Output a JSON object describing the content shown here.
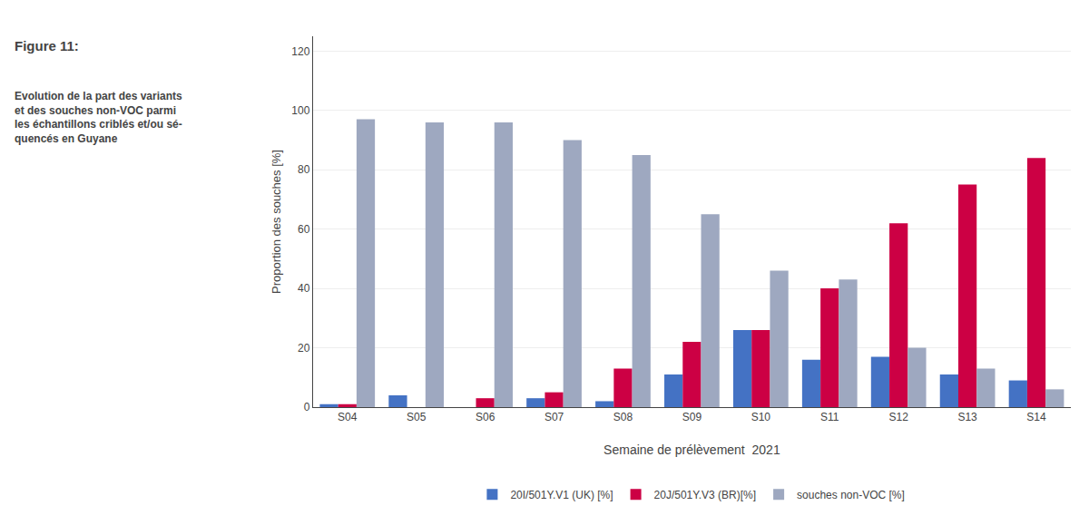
{
  "chart_data": {
    "type": "bar",
    "title": "Figure 11:",
    "subtitle": "Evolution de la part des variants\net des souches non-VOC parmi\nles échantillons criblés et/ou sé-\nquencés en Guyane",
    "categories": [
      "S04",
      "S05",
      "S06",
      "S07",
      "S08",
      "S09",
      "S10",
      "S11",
      "S12",
      "S13",
      "S14"
    ],
    "series": [
      {
        "name": "20I/501Y.V1 (UK) [%]",
        "color": "#4472C4",
        "values": [
          1,
          4,
          0,
          3,
          2,
          11,
          26,
          16,
          17,
          11,
          9
        ]
      },
      {
        "name": "20J/501Y.V3 (BR)[%]",
        "color": "#CC0044",
        "values": [
          1,
          0,
          3,
          5,
          13,
          22,
          26,
          40,
          62,
          75,
          84
        ]
      },
      {
        "name": "souches non-VOC [%]",
        "color": "#9EA8C0",
        "values": [
          97,
          96,
          96,
          90,
          85,
          65,
          46,
          43,
          20,
          13,
          6
        ]
      }
    ],
    "xlabel": "Semaine de prélèvement  2021",
    "ylabel": "Proportion des souches [%]",
    "ylim": [
      0,
      125
    ],
    "yticks": [
      0,
      20,
      40,
      60,
      80,
      100,
      120
    ],
    "grid": true,
    "legend": "bottom"
  }
}
